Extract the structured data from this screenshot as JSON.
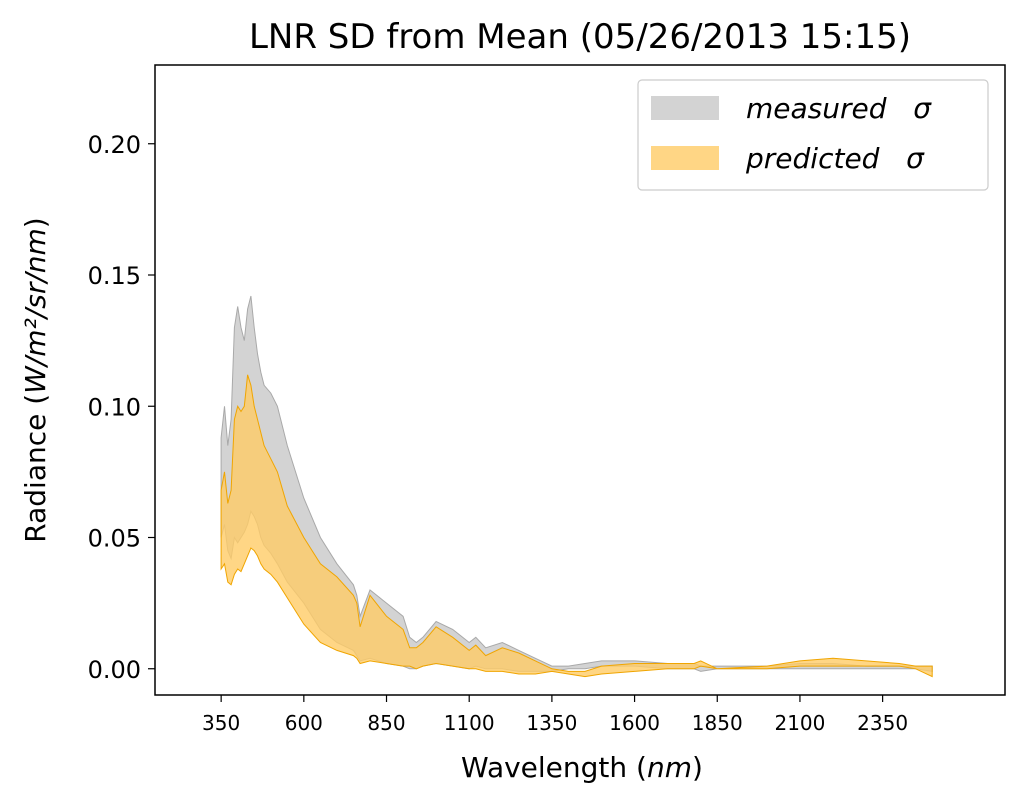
{
  "chart_data": {
    "type": "area",
    "title": "LNR SD from Mean (05/26/2013 15:15)",
    "xlabel_prefix": "Wavelength (",
    "xlabel_unit": "nm",
    "xlabel_suffix": ")",
    "ylabel_prefix": "Radiance (",
    "ylabel_unit": "W/m²/sr/nm",
    "ylabel_suffix": ")",
    "xlim": [
      150,
      2720
    ],
    "ylim": [
      -0.01,
      0.23
    ],
    "xticks": [
      350,
      600,
      850,
      1100,
      1350,
      1600,
      1850,
      2100,
      2350
    ],
    "xtick_labels": [
      "350",
      "600",
      "850",
      "1100",
      "1350",
      "1600",
      "1850",
      "2100",
      "2350"
    ],
    "yticks": [
      0.0,
      0.05,
      0.1,
      0.15,
      0.2
    ],
    "ytick_labels": [
      "0.00",
      "0.05",
      "0.10",
      "0.15",
      "0.20"
    ],
    "grid": false,
    "legend_position": "top-right",
    "series": [
      {
        "name": "measured   σ",
        "color": "#d3d3d3",
        "edge_color": "#a9a9a9",
        "x": [
          350,
          360,
          370,
          380,
          390,
          400,
          410,
          420,
          430,
          440,
          450,
          460,
          470,
          480,
          500,
          520,
          550,
          600,
          650,
          700,
          750,
          760,
          770,
          800,
          850,
          900,
          920,
          940,
          960,
          1000,
          1050,
          1100,
          1120,
          1150,
          1200,
          1250,
          1300,
          1350,
          1400,
          1450,
          1500,
          1600,
          1700,
          1780,
          1800,
          1850,
          2000,
          2100,
          2200,
          2300,
          2400,
          2450,
          2500
        ],
        "upper": [
          0.088,
          0.1,
          0.085,
          0.095,
          0.13,
          0.138,
          0.13,
          0.125,
          0.137,
          0.142,
          0.13,
          0.12,
          0.113,
          0.108,
          0.105,
          0.1,
          0.085,
          0.065,
          0.05,
          0.04,
          0.032,
          0.028,
          0.02,
          0.03,
          0.025,
          0.02,
          0.012,
          0.01,
          0.012,
          0.018,
          0.015,
          0.01,
          0.012,
          0.008,
          0.01,
          0.007,
          0.004,
          0.001,
          0.001,
          0.002,
          0.003,
          0.003,
          0.002,
          0.002,
          0.001,
          0.001,
          0.001,
          0.002,
          0.002,
          0.001,
          0.001,
          0.001,
          0.001
        ],
        "lower": [
          0.05,
          0.055,
          0.045,
          0.042,
          0.05,
          0.048,
          0.05,
          0.052,
          0.055,
          0.06,
          0.058,
          0.055,
          0.05,
          0.047,
          0.044,
          0.04,
          0.033,
          0.025,
          0.015,
          0.01,
          0.007,
          0.005,
          0.003,
          0.004,
          0.002,
          0.001,
          0.0,
          0.0,
          0.001,
          0.002,
          0.001,
          0.0,
          0.001,
          0.0,
          0.0,
          -0.001,
          -0.001,
          -0.001,
          0.0,
          0.0,
          0.001,
          0.001,
          0.0,
          0.0,
          -0.001,
          0.0,
          0.0,
          0.0,
          0.0,
          0.0,
          0.0,
          0.0,
          -0.001
        ]
      },
      {
        "name": "predicted   σ",
        "color": "#ffcc66",
        "edge_color": "#f0a500",
        "x": [
          350,
          360,
          370,
          380,
          390,
          400,
          410,
          420,
          430,
          440,
          450,
          460,
          470,
          480,
          500,
          520,
          550,
          600,
          650,
          700,
          750,
          760,
          770,
          800,
          850,
          900,
          920,
          940,
          960,
          1000,
          1050,
          1100,
          1120,
          1150,
          1200,
          1250,
          1300,
          1350,
          1400,
          1450,
          1500,
          1600,
          1700,
          1780,
          1800,
          1850,
          2000,
          2100,
          2200,
          2300,
          2400,
          2450,
          2500
        ],
        "upper": [
          0.068,
          0.075,
          0.063,
          0.068,
          0.095,
          0.1,
          0.098,
          0.1,
          0.112,
          0.108,
          0.1,
          0.095,
          0.09,
          0.085,
          0.08,
          0.075,
          0.062,
          0.05,
          0.04,
          0.035,
          0.028,
          0.025,
          0.016,
          0.028,
          0.02,
          0.015,
          0.008,
          0.008,
          0.01,
          0.016,
          0.012,
          0.007,
          0.009,
          0.005,
          0.008,
          0.006,
          0.003,
          0.0,
          -0.001,
          -0.001,
          0.001,
          0.002,
          0.002,
          0.002,
          0.003,
          0.0,
          0.001,
          0.003,
          0.004,
          0.003,
          0.002,
          0.001,
          0.001
        ],
        "lower": [
          0.038,
          0.04,
          0.033,
          0.032,
          0.036,
          0.038,
          0.037,
          0.04,
          0.043,
          0.046,
          0.045,
          0.043,
          0.04,
          0.038,
          0.036,
          0.033,
          0.027,
          0.017,
          0.01,
          0.007,
          0.005,
          0.004,
          0.002,
          0.003,
          0.002,
          0.001,
          0.001,
          0.0,
          0.001,
          0.002,
          0.001,
          0.0,
          0.0,
          -0.001,
          -0.001,
          -0.002,
          -0.002,
          -0.001,
          -0.002,
          -0.003,
          -0.002,
          -0.001,
          0.0,
          0.0,
          0.001,
          0.0,
          0.0,
          0.001,
          0.001,
          0.001,
          0.001,
          0.0,
          -0.003
        ]
      }
    ]
  }
}
